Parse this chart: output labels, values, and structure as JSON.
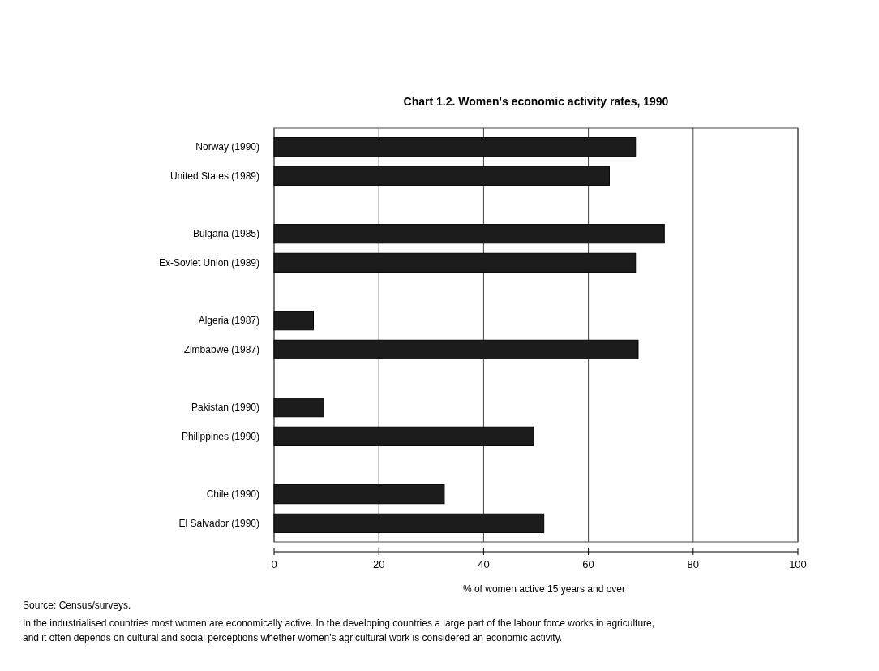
{
  "chart_data": {
    "type": "bar",
    "orientation": "horizontal",
    "title": "Chart 1.2.  Women's economic activity rates, 1990",
    "xlabel": "% of women active 15 years and over",
    "categories": [
      "Norway (1990)",
      "United States (1989)",
      null,
      "Bulgaria (1985)",
      "Ex-Soviet Union (1989)",
      null,
      "Algeria (1987)",
      "Zimbabwe (1987)",
      null,
      "Pakistan (1990)",
      "Philippines (1990)",
      null,
      "Chile (1990)",
      "El Salvador (1990)"
    ],
    "values": [
      69,
      64,
      null,
      74.5,
      69,
      null,
      7.5,
      69.5,
      null,
      9.5,
      49.5,
      null,
      32.5,
      51.5
    ],
    "color": "#1c1c1c",
    "xlim": [
      0,
      100
    ],
    "xticks": [
      0,
      20,
      40,
      60,
      80,
      100
    ],
    "grid": "x",
    "annotations": [
      "Source: Census/surveys.",
      "In the industrialised countries most women are economically active. In the developing countries a large part of the labour force works in agriculture, and it often depends on cultural and social perceptions whether women's agricultural work is considered an economic activity."
    ]
  }
}
